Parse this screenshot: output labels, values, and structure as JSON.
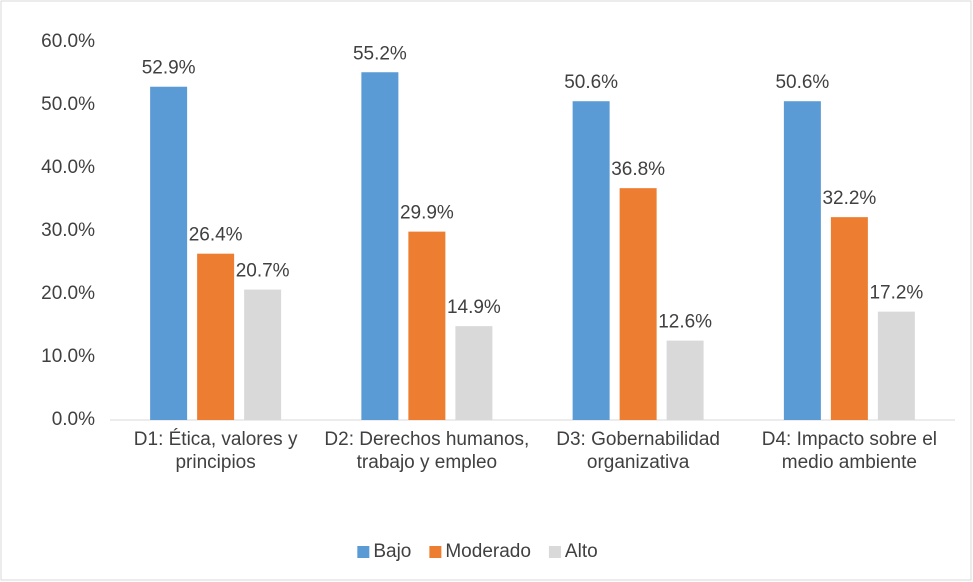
{
  "chart_data": {
    "type": "bar",
    "categories": [
      "D1: Ética, valores y principios",
      "D2: Derechos humanos, trabajo y empleo",
      "D3: Gobernabilidad organizativa",
      "D4: Impacto sobre el medio ambiente"
    ],
    "series": [
      {
        "name": "Bajo",
        "color": "#5b9bd5",
        "values": [
          52.9,
          55.2,
          50.6,
          50.6
        ],
        "value_labels": [
          "52.9%",
          "55.2%",
          "50.6%",
          "50.6%"
        ]
      },
      {
        "name": "Moderado",
        "color": "#ed7d31",
        "values": [
          26.4,
          29.9,
          36.8,
          32.2
        ],
        "value_labels": [
          "26.4%",
          "29.9%",
          "36.8%",
          "32.2%"
        ]
      },
      {
        "name": "Alto",
        "color": "#d9d9d9",
        "values": [
          20.7,
          14.9,
          12.6,
          17.2
        ],
        "value_labels": [
          "20.7%",
          "14.9%",
          "12.6%",
          "17.2%"
        ]
      }
    ],
    "ylim": [
      0,
      60
    ],
    "yticks": [
      {
        "value": 0,
        "label": "0.0%"
      },
      {
        "value": 10,
        "label": "10.0%"
      },
      {
        "value": 20,
        "label": "20.0%"
      },
      {
        "value": 30,
        "label": "30.0%"
      },
      {
        "value": 40,
        "label": "40.0%"
      },
      {
        "value": 50,
        "label": "50.0%"
      },
      {
        "value": 60,
        "label": "60.0%"
      }
    ],
    "grid": false,
    "legend": "bottom"
  }
}
